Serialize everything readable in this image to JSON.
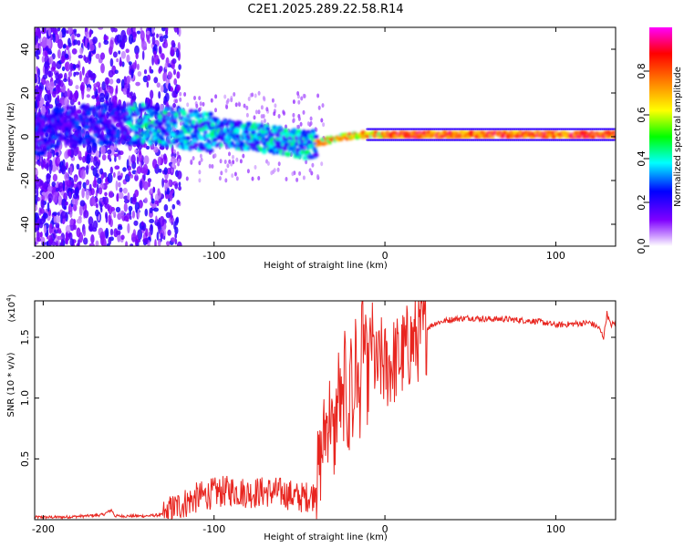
{
  "chart_data": [
    {
      "type": "heatmap",
      "title": "C2E1.2025.289.22.58.R14",
      "xlabel": "Height of straight line (km)",
      "ylabel": "Frequency (Hz)",
      "xlim": [
        -205,
        135
      ],
      "ylim": [
        -50,
        50
      ],
      "xticks": [
        -200,
        -100,
        0,
        100
      ],
      "yticks": [
        -40,
        -20,
        0,
        20,
        40
      ],
      "colorbar": {
        "label": "Normalized spectral amplitude",
        "range": [
          0,
          1
        ],
        "ticks": [
          "0.0",
          "0.2",
          "0.4",
          "0.6",
          "0.8"
        ],
        "colors": [
          "#ffffff",
          "#7f00ff",
          "#0000ff",
          "#00ffff",
          "#00ff00",
          "#ffff00",
          "#ff8000",
          "#ff0000",
          "#ff00ff"
        ]
      },
      "ridge": [
        {
          "x": -200,
          "f": 3
        },
        {
          "x": -180,
          "f": 5
        },
        {
          "x": -160,
          "f": 6
        },
        {
          "x": -140,
          "f": 6
        },
        {
          "x": -120,
          "f": 4
        },
        {
          "x": -100,
          "f": 2
        },
        {
          "x": -80,
          "f": 0
        },
        {
          "x": -60,
          "f": -2
        },
        {
          "x": -45,
          "f": -4
        },
        {
          "x": -30,
          "f": -1
        },
        {
          "x": -15,
          "f": 1
        },
        {
          "x": 0,
          "f": 1
        },
        {
          "x": 50,
          "f": 1
        },
        {
          "x": 100,
          "f": 1
        },
        {
          "x": 135,
          "f": 1
        }
      ]
    },
    {
      "type": "line",
      "title": "",
      "xlabel": "Height of straight line (km)",
      "ylabel": "SNR (10 * v/v)",
      "y_multiplier": "(x10",
      "y_multiplier_exp": "4",
      "y_multiplier_close": ")",
      "xlim": [
        -205,
        135
      ],
      "ylim": [
        0,
        1.8
      ],
      "xticks": [
        -200,
        -100,
        0,
        100
      ],
      "yticks": [
        0.5,
        1.0,
        1.5
      ],
      "ytick_labels": [
        "0.5",
        "1.0",
        "1.5"
      ],
      "color": "#e8251f",
      "series": [
        {
          "name": "SNR",
          "x": [
            -205,
            -190,
            -175,
            -165,
            -160,
            -158,
            -150,
            -140,
            -130,
            -125,
            -120,
            -110,
            -100,
            -90,
            -80,
            -70,
            -60,
            -50,
            -42,
            -38,
            -35,
            -32,
            -30,
            -27,
            -25,
            -23,
            -21,
            -20,
            -19,
            -17,
            -15,
            -13,
            -10,
            -8,
            -5,
            -2,
            0,
            5,
            10,
            15,
            20,
            25,
            30,
            40,
            50,
            60,
            70,
            80,
            90,
            100,
            110,
            120,
            125,
            128,
            130,
            132,
            135
          ],
          "y": [
            0.02,
            0.02,
            0.03,
            0.04,
            0.08,
            0.03,
            0.03,
            0.03,
            0.04,
            0.08,
            0.12,
            0.18,
            0.22,
            0.24,
            0.22,
            0.23,
            0.22,
            0.18,
            0.2,
            0.45,
            0.75,
            0.9,
            0.6,
            1.1,
            0.8,
            1.3,
            0.5,
            1.8,
            0.7,
            1.4,
            0.9,
            1.6,
            1.1,
            1.5,
            1.2,
            1.3,
            1.25,
            1.3,
            1.35,
            1.45,
            1.5,
            1.58,
            1.62,
            1.65,
            1.66,
            1.65,
            1.65,
            1.64,
            1.63,
            1.6,
            1.61,
            1.62,
            1.58,
            1.5,
            1.7,
            1.6,
            1.62
          ]
        }
      ]
    }
  ]
}
